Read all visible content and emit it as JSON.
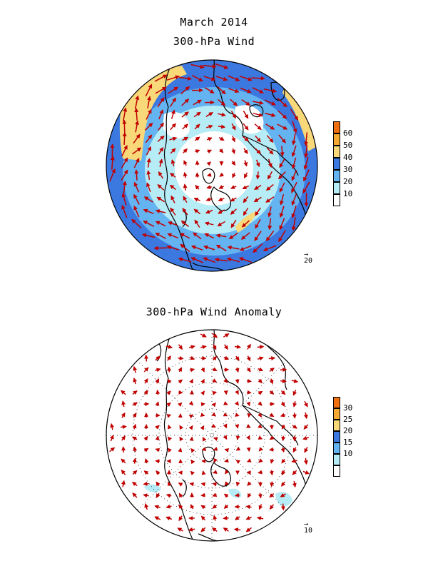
{
  "header": {
    "title": "March 2014",
    "subtitle_top": "300-hPa Wind"
  },
  "panel_bottom": {
    "title": "300-hPa Wind Anomaly"
  },
  "colorbar_top": {
    "ticks": [
      "60",
      "50",
      "40",
      "30",
      "20",
      "10"
    ],
    "colors": [
      "#f07010",
      "#f5a832",
      "#f8d878",
      "#3b78e0",
      "#64b4f2",
      "#b6ecf6",
      "#ffffff"
    ]
  },
  "colorbar_bottom": {
    "ticks": [
      "30",
      "25",
      "20",
      "15",
      "10"
    ],
    "colors": [
      "#f07010",
      "#f5a832",
      "#f8d878",
      "#3b78e0",
      "#64b4f2",
      "#b6ecf6",
      "#ffffff"
    ]
  },
  "ref_vector_top": {
    "label": "20"
  },
  "ref_vector_bottom": {
    "label": "10"
  },
  "style": {
    "arrow_color": "#c00000",
    "coast_color": "#000000"
  }
}
